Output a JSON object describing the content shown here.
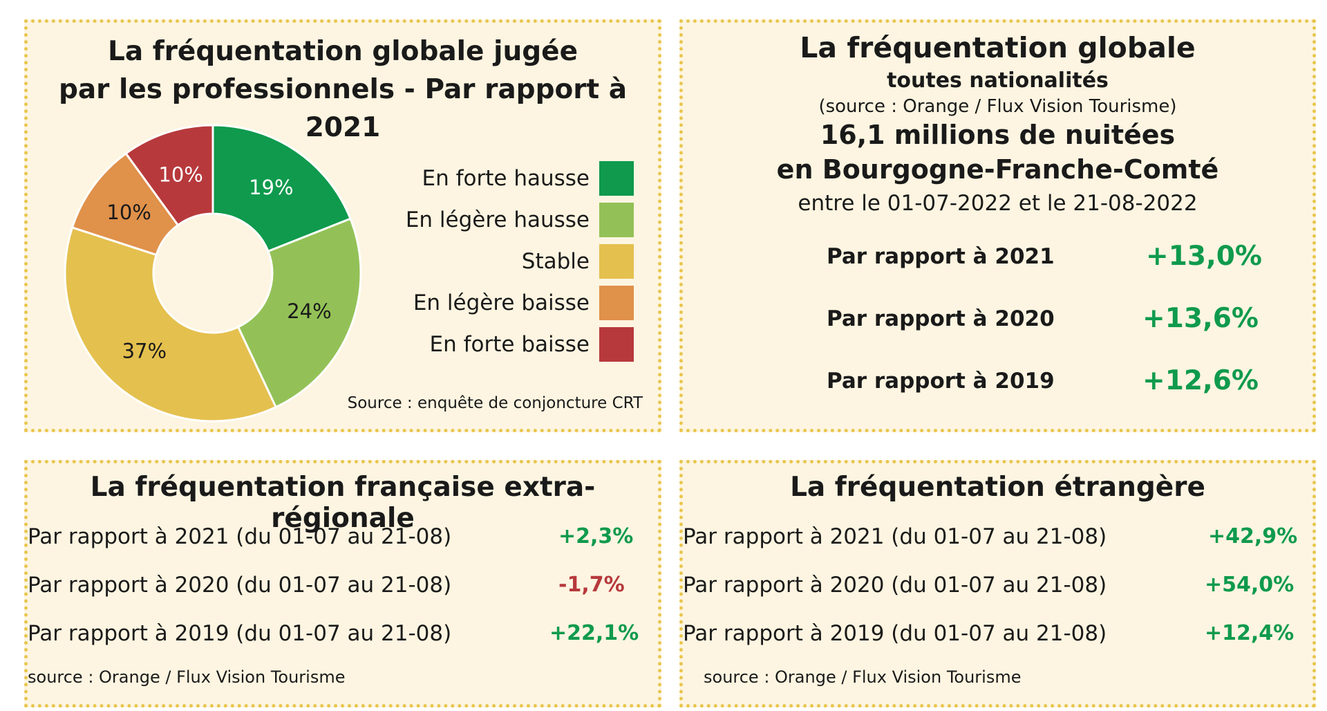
{
  "panel_pie": {
    "title_line1": "La fréquentation globale jugée",
    "title_line2": "par les professionnels - Par rapport à 2021",
    "source": "Source : enquête de conjoncture CRT"
  },
  "chart_data": {
    "type": "pie",
    "donut": true,
    "title": "La fréquentation globale jugée par les professionnels - Par rapport à 2021",
    "categories": [
      "En forte hausse",
      "En légère hausse",
      "Stable",
      "En légère baisse",
      "En forte baisse"
    ],
    "values": [
      19,
      24,
      37,
      10,
      10
    ],
    "labels": [
      "19%",
      "24%",
      "37%",
      "10%",
      "10%"
    ],
    "colors": [
      "#0f9a4d",
      "#93c157",
      "#e4c04e",
      "#e0914a",
      "#b7393c"
    ],
    "legend_position": "right"
  },
  "panel_global": {
    "title": "La fréquentation globale",
    "subtitle": "toutes nationalités",
    "source": "(source : Orange / Flux Vision Tourisme)",
    "headline_line1": "16,1 millions de nuitées",
    "headline_line2": "en Bourgogne-Franche-Comté",
    "period": "entre le 01-07-2022 et le 21-08-2022",
    "rows": [
      {
        "label": "Par rapport à 2021",
        "value": "+13,0%"
      },
      {
        "label": "Par rapport à 2020",
        "value": "+13,6%"
      },
      {
        "label": "Par rapport à 2019",
        "value": "+12,6%"
      }
    ]
  },
  "panel_french": {
    "title": "La fréquentation française extra-régionale",
    "rows": [
      {
        "label": "Par rapport à 2021 (du 01-07 au 21-08)",
        "value": "+2,3%",
        "color": "#0f9a4d"
      },
      {
        "label": "Par rapport à 2020 (du 01-07 au 21-08)",
        "value": "-1,7%",
        "color": "#b7393c"
      },
      {
        "label": "Par rapport à 2019 (du 01-07 au 21-08)",
        "value": "+22,1%",
        "color": "#0f9a4d"
      }
    ],
    "source": "source : Orange / Flux Vision Tourisme"
  },
  "panel_foreign": {
    "title": "La fréquentation étrangère",
    "rows": [
      {
        "label": "Par rapport à 2021 (du 01-07 au 21-08)",
        "value": "+42,9%",
        "color": "#0f9a4d"
      },
      {
        "label": "Par rapport à 2020 (du 01-07 au 21-08)",
        "value": "+54,0%",
        "color": "#0f9a4d"
      },
      {
        "label": "Par rapport à 2019 (du 01-07 au 21-08)",
        "value": "+12,4%",
        "color": "#0f9a4d"
      }
    ],
    "source": "source : Orange / Flux Vision Tourisme"
  }
}
